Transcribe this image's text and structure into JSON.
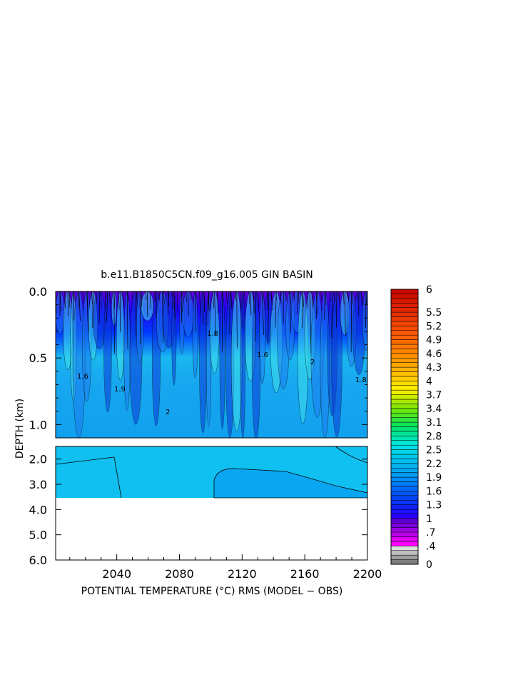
{
  "chart_data": {
    "type": "heatmap",
    "title": "b.e11.B1850C5CN.f09_g16.005 GIN BASIN",
    "xlabel": "POTENTIAL TEMPERATURE (°C) RMS (MODEL − OBS)",
    "ylabel": "DEPTH (km)",
    "xlim": [
      2001,
      2200
    ],
    "x_ticks": [
      "2040",
      "2080",
      "2120",
      "2160",
      "2200"
    ],
    "y_ticks_upper": [
      "0.0",
      "0.5",
      "1.0"
    ],
    "y_ticks_lower": [
      "2.0",
      "3.0",
      "4.0",
      "5.0",
      "6.0"
    ],
    "upper_panel_ylim_km": [
      0.0,
      1.1
    ],
    "lower_panel_ylim_km": [
      1.5,
      6.0
    ],
    "data_bottom_km": 3.3,
    "colorbar": {
      "min": 0,
      "max": 6,
      "labels": [
        "6",
        "5.5",
        "5.2",
        "4.9",
        "4.6",
        "4.3",
        "4",
        "3.7",
        "3.4",
        "3.1",
        "2.8",
        "2.5",
        "2.2",
        "1.9",
        "1.6",
        "1.3",
        "1",
        ".7",
        ".4",
        "0"
      ]
    },
    "contour_labels": [
      "1.6",
      "1.9",
      "2",
      "1.8",
      "1.6",
      "2",
      "1.8"
    ]
  }
}
